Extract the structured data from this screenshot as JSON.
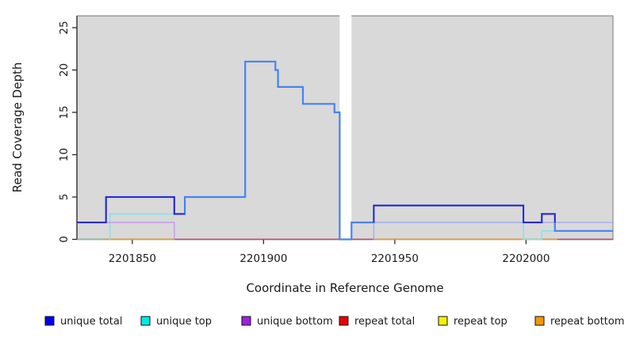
{
  "figure": {
    "y_axis_label": "Read Coverage Depth",
    "x_axis_label": "Coordinate in Reference Genome"
  },
  "chart_data": {
    "type": "line",
    "subtype": "step-coverage-plot",
    "title": "",
    "xlabel": "Coordinate in Reference Genome",
    "ylabel": "Read Coverage Depth",
    "x_range": [
      2201828.9,
      2202033.1
    ],
    "y_range": [
      0,
      26.4
    ],
    "x_ticks": [
      2201850,
      2201900,
      2201950,
      2202000
    ],
    "y_ticks": [
      0,
      5,
      10,
      15,
      20,
      25
    ],
    "grid": false,
    "panel_bg": "#d9d9d9",
    "panel_border": "#8a8a8a",
    "axis_color": "#2b2b2b",
    "mask_band": {
      "start": 2201929,
      "end": 2201933.5,
      "color": "#ffffff"
    },
    "series": [
      {
        "name": "baseline-overlap-left",
        "color": "#74c791",
        "width": 1.6,
        "points": [
          [
            2201829,
            0
          ],
          [
            2201840,
            0
          ]
        ]
      },
      {
        "name": "baseline-repeat-bottom-a",
        "color": "#ff9702",
        "width": 1.6,
        "points": [
          [
            2201840,
            0
          ],
          [
            2201866,
            0
          ]
        ]
      },
      {
        "name": "baseline-overlap-mid",
        "color": "#d34076",
        "width": 1.6,
        "points": [
          [
            2201866,
            0
          ],
          [
            2201929,
            0
          ]
        ]
      },
      {
        "name": "baseline-overlap-mid2",
        "color": "#d34076",
        "width": 1.6,
        "points": [
          [
            2201933.5,
            0
          ],
          [
            2201942,
            0
          ]
        ]
      },
      {
        "name": "baseline-repeat-bottom-b",
        "color": "#ff9702",
        "width": 1.6,
        "points": [
          [
            2201942,
            0
          ],
          [
            2201999,
            0
          ]
        ]
      },
      {
        "name": "baseline-overlap-right",
        "color": "#74c791",
        "width": 1.6,
        "points": [
          [
            2201999,
            0
          ],
          [
            2202006,
            0
          ]
        ]
      },
      {
        "name": "baseline-repeat-bottom-c",
        "color": "#ff9702",
        "width": 1.6,
        "points": [
          [
            2202006,
            0
          ],
          [
            2202012,
            0
          ]
        ]
      },
      {
        "name": "baseline-overlap-end",
        "color": "#d34076",
        "width": 1.6,
        "points": [
          [
            2202012,
            0
          ],
          [
            2202033.1,
            0
          ]
        ]
      },
      {
        "name": "unique-top-left",
        "color": "#7de4e6",
        "width": 1.5,
        "points": [
          [
            2201841.5,
            0
          ],
          [
            2201841.5,
            3
          ],
          [
            2201870,
            3
          ]
        ]
      },
      {
        "name": "unique-top-right",
        "color": "#7de4e6",
        "width": 1.5,
        "points": [
          [
            2201933.5,
            2
          ],
          [
            2201999,
            2
          ],
          [
            2201999,
            0
          ],
          [
            2202006,
            0
          ],
          [
            2202006,
            1
          ],
          [
            2202033.1,
            1
          ]
        ]
      },
      {
        "name": "unique-bottom-left",
        "color": "#c49bea",
        "width": 1.5,
        "points": [
          [
            2201840,
            2
          ],
          [
            2201866,
            2
          ],
          [
            2201866,
            0
          ]
        ]
      },
      {
        "name": "unique-bottom-right",
        "color": "#a9aeec",
        "width": 1.5,
        "points": [
          [
            2201942,
            0
          ],
          [
            2201942,
            2
          ],
          [
            2202033.1,
            2
          ]
        ]
      },
      {
        "name": "total",
        "color": "#4583f0",
        "width": 2.2,
        "points": [
          [
            2201829,
            2
          ],
          [
            2201840,
            2
          ],
          [
            2201840,
            5
          ],
          [
            2201866,
            5
          ],
          [
            2201866,
            3
          ],
          [
            2201870,
            3
          ],
          [
            2201870,
            5
          ],
          [
            2201893,
            5
          ],
          [
            2201893,
            21
          ],
          [
            2201904.5,
            21
          ],
          [
            2201904.5,
            20
          ],
          [
            2201905.5,
            20
          ],
          [
            2201905.5,
            18
          ],
          [
            2201915,
            18
          ],
          [
            2201915,
            16
          ],
          [
            2201927,
            16
          ],
          [
            2201927,
            15
          ],
          [
            2201929,
            15
          ],
          [
            2201929,
            0
          ],
          [
            2201933.5,
            0
          ],
          [
            2201933.5,
            2
          ],
          [
            2201942,
            2
          ],
          [
            2201942,
            4
          ],
          [
            2201999,
            4
          ],
          [
            2201999,
            2
          ],
          [
            2202006,
            2
          ],
          [
            2202006,
            3
          ],
          [
            2202011,
            3
          ],
          [
            2202011,
            1
          ],
          [
            2202033.1,
            1
          ]
        ]
      },
      {
        "name": "unique-total-left",
        "color": "#2b1ed1",
        "width": 1.8,
        "points": [
          [
            2201829,
            2
          ],
          [
            2201840,
            2
          ],
          [
            2201840,
            5
          ],
          [
            2201866,
            5
          ],
          [
            2201866,
            3
          ],
          [
            2201870,
            3
          ]
        ]
      },
      {
        "name": "unique-total-right",
        "color": "#2b1ed1",
        "width": 1.8,
        "points": [
          [
            2201942,
            2
          ],
          [
            2201942,
            4
          ],
          [
            2201999,
            4
          ],
          [
            2201999,
            2
          ],
          [
            2202006,
            2
          ],
          [
            2202006,
            3
          ],
          [
            2202011,
            3
          ],
          [
            2202011,
            2
          ]
        ]
      }
    ],
    "legend_position": "bottom"
  },
  "legend": {
    "items": [
      {
        "label": "unique total",
        "color": "#0000f0"
      },
      {
        "label": "unique top",
        "color": "#00e8e8"
      },
      {
        "label": "unique bottom",
        "color": "#a21fe0"
      },
      {
        "label": "repeat total",
        "color": "#e80000"
      },
      {
        "label": "repeat top",
        "color": "#f2f200"
      },
      {
        "label": "repeat bottom",
        "color": "#f09800"
      }
    ]
  }
}
